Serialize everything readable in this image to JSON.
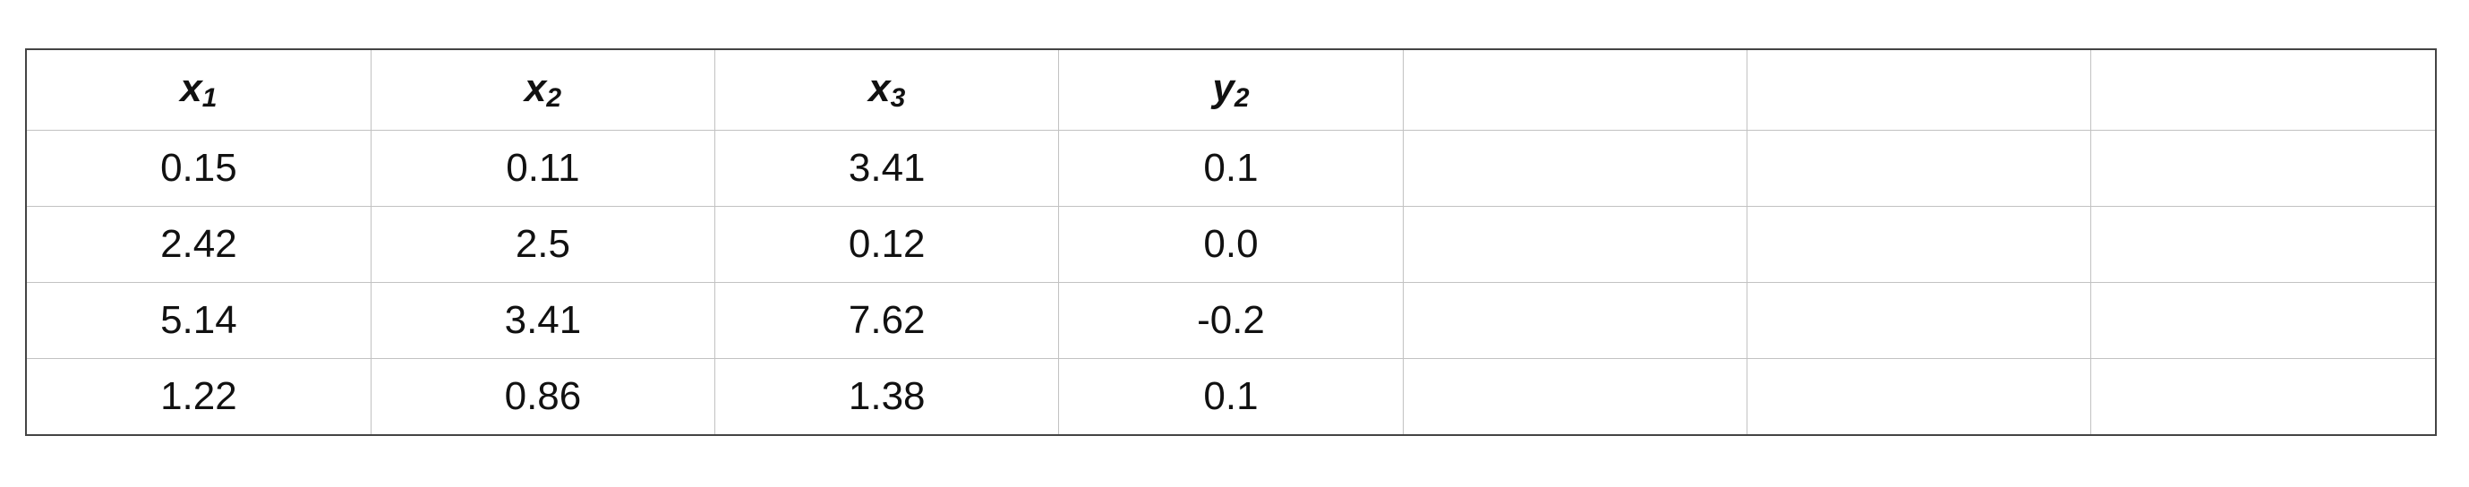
{
  "table": {
    "headers": [
      {
        "base": "x",
        "sub": "1"
      },
      {
        "base": "x",
        "sub": "2"
      },
      {
        "base": "x",
        "sub": "3"
      },
      {
        "base": "y",
        "sub": "2"
      },
      {
        "base": "",
        "sub": ""
      },
      {
        "base": "",
        "sub": ""
      },
      {
        "base": "",
        "sub": ""
      }
    ],
    "rows": [
      [
        "0.15",
        "0.11",
        "3.41",
        "0.1",
        "",
        "",
        ""
      ],
      [
        "2.42",
        "2.5",
        "0.12",
        "0.0",
        "",
        "",
        ""
      ],
      [
        "5.14",
        "3.41",
        "7.62",
        "-0.2",
        "",
        "",
        ""
      ],
      [
        "1.22",
        "0.86",
        "1.38",
        "0.1",
        "",
        "",
        ""
      ]
    ]
  }
}
